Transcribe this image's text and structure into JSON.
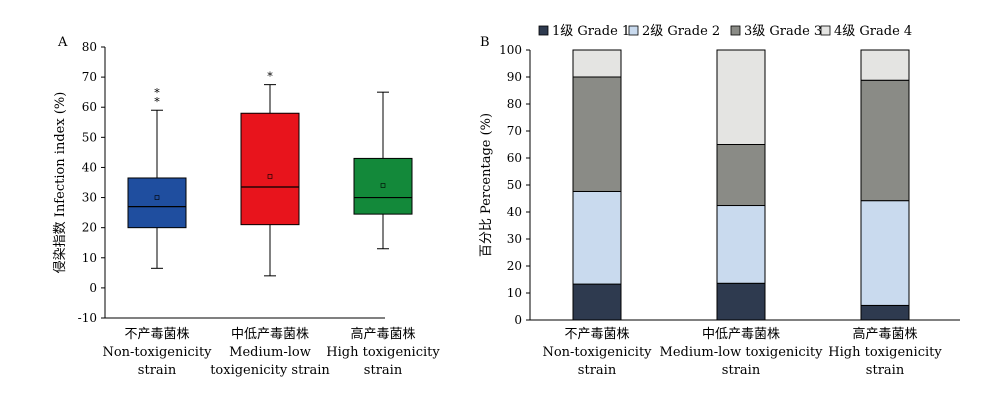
{
  "chart_data": [
    {
      "type": "box",
      "panel_label": "A",
      "ylabel": "侵染指数 Infection index (%)",
      "ylim": [
        -10,
        80
      ],
      "yticks": [
        -10,
        0,
        10,
        20,
        30,
        40,
        50,
        60,
        70,
        80
      ],
      "categories": [
        [
          "不产毒菌株",
          "Non-toxigenicity",
          "strain"
        ],
        [
          "中低产毒菌株",
          "Medium-low",
          "toxigenicity strain"
        ],
        [
          "高产毒菌株",
          "High toxigenicity",
          "strain"
        ]
      ],
      "boxes": [
        {
          "whisker_low": 6.5,
          "q1": 20,
          "median": 27,
          "q3": 36.5,
          "whisker_high": 59,
          "mean": 30,
          "outliers": [
            62.5,
            65.5
          ],
          "color": "#1f4e9f"
        },
        {
          "whisker_low": 4,
          "q1": 21,
          "median": 33.5,
          "q3": 58,
          "whisker_high": 67.5,
          "mean": 37,
          "outliers": [
            71
          ],
          "color": "#e8141c"
        },
        {
          "whisker_low": 13,
          "q1": 24.5,
          "median": 30,
          "q3": 43,
          "whisker_high": 65,
          "mean": 34,
          "outliers": [],
          "color": "#13893a"
        }
      ]
    },
    {
      "type": "bar",
      "stacked": true,
      "panel_label": "B",
      "ylabel": "百分比 Percentage (%)",
      "ylim": [
        0,
        100
      ],
      "yticks": [
        0,
        10,
        20,
        30,
        40,
        50,
        60,
        70,
        80,
        90,
        100
      ],
      "legend_position": "top",
      "categories": [
        [
          "不产毒菌株",
          "Non-toxigenicity",
          "strain"
        ],
        [
          "中低产毒菌株",
          "Medium-low toxigenicity",
          "strain"
        ],
        [
          "高产毒菌株",
          "High toxigenicity",
          "strain"
        ]
      ],
      "series": [
        {
          "name": "1级 Grade 1",
          "color": "#2e3a4f",
          "values": [
            13.3,
            13.6,
            5.4
          ]
        },
        {
          "name": "2级 Grade 2",
          "color": "#c9daee",
          "values": [
            34.3,
            28.8,
            38.8
          ]
        },
        {
          "name": "3级 Grade 3",
          "color": "#8a8b86",
          "values": [
            42.4,
            22.6,
            44.6
          ]
        },
        {
          "name": "4级 Grade 4",
          "color": "#e4e4e2",
          "values": [
            10.0,
            35.0,
            11.2
          ]
        }
      ]
    }
  ]
}
